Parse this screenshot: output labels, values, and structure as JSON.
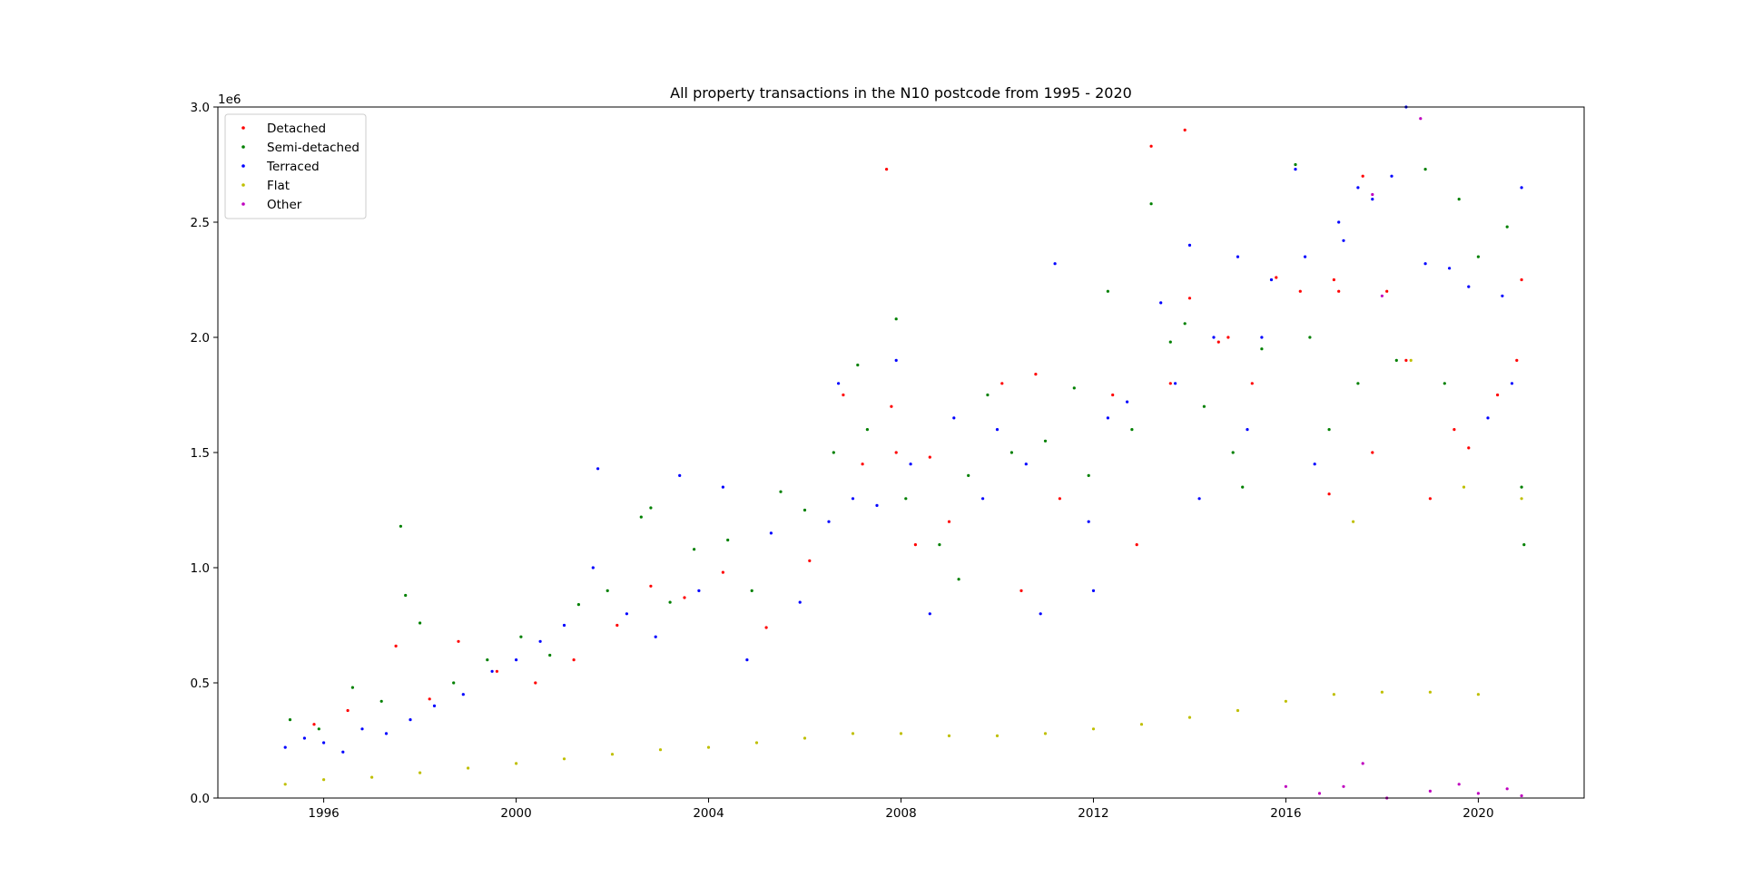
{
  "chart_data": {
    "type": "scatter",
    "title": "All property transactions in the N10 postcode from 1995 - 2020",
    "xlabel": "",
    "ylabel": "",
    "y_offset_label": "1e6",
    "xlim": [
      1993.8,
      2022.2
    ],
    "ylim": [
      0,
      3.0
    ],
    "x_ticks": [
      1996,
      2000,
      2004,
      2008,
      2012,
      2016,
      2020
    ],
    "x_tick_labels": [
      "1996",
      "2000",
      "2004",
      "2008",
      "2012",
      "2016",
      "2020"
    ],
    "y_ticks": [
      0.0,
      0.5,
      1.0,
      1.5,
      2.0,
      2.5,
      3.0
    ],
    "y_tick_labels": [
      "0.0",
      "0.5",
      "1.0",
      "1.5",
      "2.0",
      "2.5",
      "3.0"
    ],
    "grid": false,
    "legend_position": "top-left",
    "series": [
      {
        "name": "Detached",
        "color": "#ff0000",
        "points": [
          [
            1995.8,
            0.32
          ],
          [
            1996.5,
            0.38
          ],
          [
            1997.5,
            0.66
          ],
          [
            1998.2,
            0.43
          ],
          [
            1998.8,
            0.68
          ],
          [
            1999.6,
            0.55
          ],
          [
            2000.4,
            0.5
          ],
          [
            2001.2,
            0.6
          ],
          [
            2002.1,
            0.75
          ],
          [
            2002.8,
            0.92
          ],
          [
            2003.5,
            0.87
          ],
          [
            2004.3,
            0.98
          ],
          [
            2005.2,
            0.74
          ],
          [
            2006.1,
            1.03
          ],
          [
            2006.8,
            1.75
          ],
          [
            2007.2,
            1.45
          ],
          [
            2007.7,
            2.73
          ],
          [
            2007.8,
            1.7
          ],
          [
            2007.9,
            1.5
          ],
          [
            2008.3,
            1.1
          ],
          [
            2008.6,
            1.48
          ],
          [
            2009.0,
            1.2
          ],
          [
            2010.1,
            1.8
          ],
          [
            2010.8,
            1.84
          ],
          [
            2011.3,
            1.3
          ],
          [
            2012.4,
            1.75
          ],
          [
            2013.2,
            2.83
          ],
          [
            2013.6,
            1.8
          ],
          [
            2013.9,
            2.9
          ],
          [
            2014.0,
            2.17
          ],
          [
            2014.6,
            1.98
          ],
          [
            2014.8,
            2.0
          ],
          [
            2015.3,
            1.8
          ],
          [
            2015.8,
            2.26
          ],
          [
            2016.3,
            2.2
          ],
          [
            2017.0,
            2.25
          ],
          [
            2017.1,
            2.2
          ],
          [
            2017.6,
            2.7
          ],
          [
            2017.8,
            1.5
          ],
          [
            2018.1,
            2.2
          ],
          [
            2018.5,
            1.9
          ],
          [
            2019.0,
            1.3
          ],
          [
            2019.5,
            1.6
          ],
          [
            2019.8,
            1.52
          ],
          [
            2020.4,
            1.75
          ],
          [
            2020.8,
            1.9
          ],
          [
            2020.9,
            2.25
          ],
          [
            2016.9,
            1.32
          ],
          [
            2012.9,
            1.1
          ],
          [
            2010.5,
            0.9
          ]
        ]
      },
      {
        "name": "Semi-detached",
        "color": "#008000",
        "points": [
          [
            1995.3,
            0.34
          ],
          [
            1995.9,
            0.3
          ],
          [
            1996.6,
            0.48
          ],
          [
            1997.2,
            0.42
          ],
          [
            1997.6,
            1.18
          ],
          [
            1997.7,
            0.88
          ],
          [
            1998.0,
            0.76
          ],
          [
            1998.7,
            0.5
          ],
          [
            1999.4,
            0.6
          ],
          [
            2000.1,
            0.7
          ],
          [
            2000.7,
            0.62
          ],
          [
            2001.3,
            0.84
          ],
          [
            2001.9,
            0.9
          ],
          [
            2002.6,
            1.22
          ],
          [
            2002.8,
            1.26
          ],
          [
            2003.2,
            0.85
          ],
          [
            2003.7,
            1.08
          ],
          [
            2004.4,
            1.12
          ],
          [
            2004.9,
            0.9
          ],
          [
            2005.5,
            1.33
          ],
          [
            2006.0,
            1.25
          ],
          [
            2006.6,
            1.5
          ],
          [
            2007.1,
            1.88
          ],
          [
            2007.3,
            1.6
          ],
          [
            2007.9,
            2.08
          ],
          [
            2008.1,
            1.3
          ],
          [
            2008.8,
            1.1
          ],
          [
            2009.4,
            1.4
          ],
          [
            2009.8,
            1.75
          ],
          [
            2010.3,
            1.5
          ],
          [
            2011.0,
            1.55
          ],
          [
            2011.6,
            1.78
          ],
          [
            2012.3,
            2.2
          ],
          [
            2012.8,
            1.6
          ],
          [
            2013.2,
            2.58
          ],
          [
            2013.6,
            1.98
          ],
          [
            2013.9,
            2.06
          ],
          [
            2014.3,
            1.7
          ],
          [
            2014.9,
            1.5
          ],
          [
            2015.5,
            1.95
          ],
          [
            2016.2,
            2.75
          ],
          [
            2016.5,
            2.0
          ],
          [
            2016.9,
            1.6
          ],
          [
            2017.5,
            1.8
          ],
          [
            2018.3,
            1.9
          ],
          [
            2018.9,
            2.73
          ],
          [
            2019.3,
            1.8
          ],
          [
            2019.6,
            2.6
          ],
          [
            2020.0,
            2.35
          ],
          [
            2020.6,
            2.48
          ],
          [
            2020.9,
            1.35
          ],
          [
            2020.95,
            1.1
          ],
          [
            2015.1,
            1.35
          ],
          [
            2011.9,
            1.4
          ],
          [
            2009.2,
            0.95
          ]
        ]
      },
      {
        "name": "Terraced",
        "color": "#0000ff",
        "points": [
          [
            1995.2,
            0.22
          ],
          [
            1995.6,
            0.26
          ],
          [
            1996.0,
            0.24
          ],
          [
            1996.4,
            0.2
          ],
          [
            1996.8,
            0.3
          ],
          [
            1997.3,
            0.28
          ],
          [
            1997.8,
            0.34
          ],
          [
            1998.3,
            0.4
          ],
          [
            1998.9,
            0.45
          ],
          [
            1999.5,
            0.55
          ],
          [
            2000.0,
            0.6
          ],
          [
            2000.5,
            0.68
          ],
          [
            2001.0,
            0.75
          ],
          [
            2001.6,
            1.0
          ],
          [
            2001.7,
            1.43
          ],
          [
            2002.3,
            0.8
          ],
          [
            2002.9,
            0.7
          ],
          [
            2003.4,
            1.4
          ],
          [
            2003.8,
            0.9
          ],
          [
            2004.3,
            1.35
          ],
          [
            2004.8,
            0.6
          ],
          [
            2005.3,
            1.15
          ],
          [
            2005.9,
            0.85
          ],
          [
            2006.5,
            1.2
          ],
          [
            2006.7,
            1.8
          ],
          [
            2007.0,
            1.3
          ],
          [
            2007.5,
            1.27
          ],
          [
            2007.9,
            1.9
          ],
          [
            2008.2,
            1.45
          ],
          [
            2008.6,
            0.8
          ],
          [
            2009.1,
            1.65
          ],
          [
            2009.7,
            1.3
          ],
          [
            2010.0,
            1.6
          ],
          [
            2010.6,
            1.45
          ],
          [
            2011.2,
            2.32
          ],
          [
            2011.9,
            1.2
          ],
          [
            2012.3,
            1.65
          ],
          [
            2012.7,
            1.72
          ],
          [
            2013.4,
            2.15
          ],
          [
            2013.7,
            1.8
          ],
          [
            2014.0,
            2.4
          ],
          [
            2014.5,
            2.0
          ],
          [
            2015.0,
            2.35
          ],
          [
            2015.5,
            2.0
          ],
          [
            2015.7,
            2.25
          ],
          [
            2016.2,
            2.73
          ],
          [
            2016.4,
            2.35
          ],
          [
            2016.6,
            1.45
          ],
          [
            2017.1,
            2.5
          ],
          [
            2017.2,
            2.42
          ],
          [
            2017.5,
            2.65
          ],
          [
            2017.8,
            2.6
          ],
          [
            2018.2,
            2.7
          ],
          [
            2018.5,
            3.0
          ],
          [
            2018.9,
            2.32
          ],
          [
            2019.4,
            2.3
          ],
          [
            2019.8,
            2.22
          ],
          [
            2020.2,
            1.65
          ],
          [
            2020.5,
            2.18
          ],
          [
            2020.7,
            1.8
          ],
          [
            2020.9,
            2.65
          ],
          [
            2015.2,
            1.6
          ],
          [
            2014.2,
            1.3
          ],
          [
            2012.0,
            0.9
          ],
          [
            2010.9,
            0.8
          ]
        ]
      },
      {
        "name": "Flat",
        "color": "#bfbf00",
        "points": [
          [
            1995.2,
            0.06
          ],
          [
            1996.0,
            0.08
          ],
          [
            1997.0,
            0.09
          ],
          [
            1998.0,
            0.11
          ],
          [
            1999.0,
            0.13
          ],
          [
            2000.0,
            0.15
          ],
          [
            2001.0,
            0.17
          ],
          [
            2002.0,
            0.19
          ],
          [
            2003.0,
            0.21
          ],
          [
            2004.0,
            0.22
          ],
          [
            2005.0,
            0.24
          ],
          [
            2006.0,
            0.26
          ],
          [
            2007.0,
            0.28
          ],
          [
            2008.0,
            0.28
          ],
          [
            2009.0,
            0.27
          ],
          [
            2010.0,
            0.27
          ],
          [
            2011.0,
            0.28
          ],
          [
            2012.0,
            0.3
          ],
          [
            2013.0,
            0.32
          ],
          [
            2014.0,
            0.35
          ],
          [
            2015.0,
            0.38
          ],
          [
            2016.0,
            0.42
          ],
          [
            2017.0,
            0.45
          ],
          [
            2018.0,
            0.46
          ],
          [
            2019.0,
            0.46
          ],
          [
            2020.0,
            0.45
          ],
          [
            2017.4,
            1.2
          ],
          [
            2018.6,
            1.9
          ],
          [
            2019.7,
            1.35
          ],
          [
            2020.9,
            1.3
          ]
        ]
      },
      {
        "name": "Other",
        "color": "#bf00bf",
        "points": [
          [
            2016.0,
            0.05
          ],
          [
            2016.7,
            0.02
          ],
          [
            2017.2,
            0.05
          ],
          [
            2017.6,
            0.15
          ],
          [
            2018.1,
            0.0
          ],
          [
            2018.8,
            2.95
          ],
          [
            2019.0,
            0.03
          ],
          [
            2019.6,
            0.06
          ],
          [
            2020.0,
            0.02
          ],
          [
            2020.6,
            0.04
          ],
          [
            2020.9,
            0.01
          ],
          [
            2017.8,
            2.62
          ],
          [
            2018.0,
            2.18
          ]
        ]
      }
    ]
  }
}
